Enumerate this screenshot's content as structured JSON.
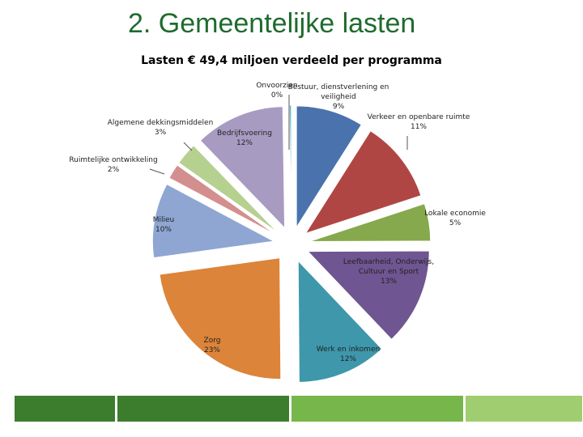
{
  "slide": {
    "title": "2. Gemeentelijke lasten"
  },
  "chart_data": {
    "type": "pie",
    "style": "exploded",
    "title": "Lasten € 49,4 miljoen verdeeld per programma",
    "slices": [
      {
        "label": [
          "Bestuur, dienstverlening en",
          "veiligheid",
          "9%"
        ],
        "value": 9,
        "color": "#4a72ad"
      },
      {
        "label": [
          "Verkeer en openbare ruimte",
          "11%"
        ],
        "value": 11,
        "color": "#b04644"
      },
      {
        "label": [
          "Lokale economie",
          "5%"
        ],
        "value": 5,
        "color": "#85a94c"
      },
      {
        "label": [
          "Leefbaarheid, Onderwijs,",
          "Cultuur en Sport",
          "13%"
        ],
        "value": 13,
        "color": "#6f5591"
      },
      {
        "label": [
          "Werk en inkomen",
          "12%"
        ],
        "value": 12,
        "color": "#3e97ab"
      },
      {
        "label": [
          "Zorg",
          "23%"
        ],
        "value": 23,
        "color": "#dc843a"
      },
      {
        "label": [
          "Milieu",
          "10%"
        ],
        "value": 10,
        "color": "#8fa6d3"
      },
      {
        "label": [
          "Ruimtelijke ontwikkeling",
          "2%"
        ],
        "value": 2,
        "color": "#d38f8e"
      },
      {
        "label": [
          "Algemene dekkingsmiddelen",
          "3%"
        ],
        "value": 3,
        "color": "#b6d08f"
      },
      {
        "label": [
          "Bedrijfsvoering",
          "12%"
        ],
        "value": 12,
        "color": "#a89bc2"
      },
      {
        "label": [
          "Onvoorzien",
          "0%"
        ],
        "value": 0.25,
        "color": "#4bb5c8"
      }
    ]
  },
  "footer": {
    "colors": [
      "#3b7d2c",
      "#3b7d2c",
      "#77b64a",
      "#9fcd70"
    ]
  }
}
